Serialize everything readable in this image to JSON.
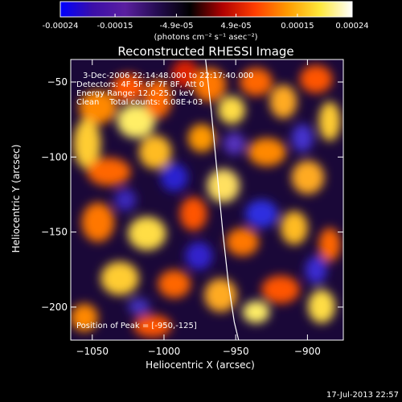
{
  "colorbar": {
    "tick_labels": [
      "-0.00024",
      "-0.00015",
      "-4.9e-05",
      "4.9e-05",
      "0.00015",
      "0.00024"
    ],
    "tick_values": [
      -0.00024,
      -0.00015,
      -4.9e-05,
      4.9e-05,
      0.00015,
      0.00024
    ],
    "range": [
      -0.00024,
      0.00024
    ],
    "units_label": "(photons cm⁻² s⁻¹ asec⁻²)",
    "colormap": [
      "#0000ff",
      "#3b0fa8",
      "#5a1fa0",
      "#240c50",
      "#000000",
      "#b00000",
      "#ff3d00",
      "#ff9a00",
      "#ffe83a",
      "#ffffff"
    ]
  },
  "chart_data": {
    "type": "heatmap",
    "title": "Reconstructed RHESSI Image",
    "xlabel": "Heliocentric X (arcsec)",
    "ylabel": "Heliocentric Y (arcsec)",
    "xlim": [
      -1065,
      -875
    ],
    "ylim": [
      -222,
      -35
    ],
    "x_ticks": [
      -1050,
      -1000,
      -950,
      -900
    ],
    "y_ticks": [
      -50,
      -100,
      -150,
      -200
    ],
    "x_tick_labels": [
      "−1050",
      "−1000",
      "−950",
      "−900"
    ],
    "y_tick_labels": [
      "−50",
      "−100",
      "−150",
      "−200"
    ],
    "limb_curve": {
      "x": [
        -971,
        -967,
        -963,
        -959,
        -955,
        -951,
        -948
      ],
      "y": [
        -35,
        -70,
        -110,
        -150,
        -185,
        -210,
        -222
      ]
    },
    "peak_position": [
      -950,
      -125
    ],
    "annotations": [
      "3-Dec-2006 22:14:48.000 to 22:17:40.000",
      "Detectors: 4F 5F 6F 7F 8F, Att 0",
      "Energy Range: 12.0-25.0 keV",
      "Clean    Total counts: 6.08E+03",
      "Position of Peak = [-950,-125]"
    ]
  },
  "timestamp": "17-Jul-2013 22:57"
}
